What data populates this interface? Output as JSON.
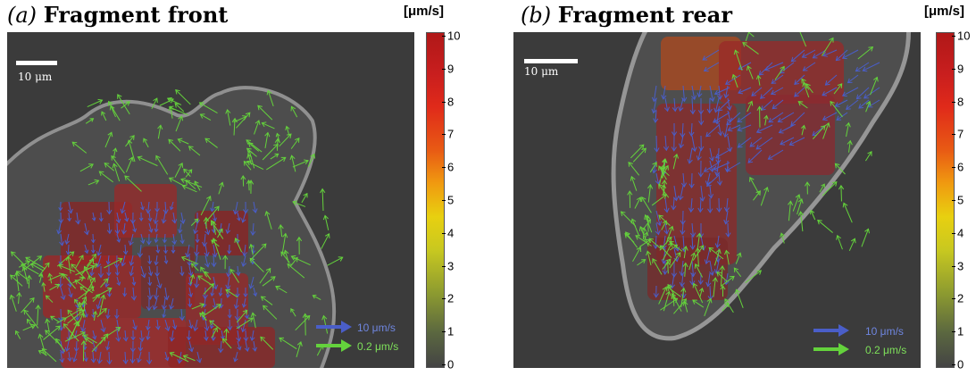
{
  "panels": [
    {
      "letter": "(a)",
      "title": "Fragment front",
      "scale_bar": "10 μm",
      "legend": [
        {
          "label": "10 μm/s",
          "color": "#4a5ec8"
        },
        {
          "label": "0.2 μm/s",
          "color": "#64d23c"
        }
      ],
      "colorbar_unit": "[μm/s]",
      "colorbar_ticks": [
        "10",
        "9",
        "8",
        "7",
        "6",
        "5",
        "4",
        "3",
        "2",
        "1",
        "0"
      ]
    },
    {
      "letter": "(b)",
      "title": "Fragment rear",
      "scale_bar": "10 μm",
      "legend": [
        {
          "label": "10 μm/s",
          "color": "#4a5ec8"
        },
        {
          "label": "0.2 μm/s",
          "color": "#64d23c"
        }
      ],
      "colorbar_unit": "[μm/s]",
      "colorbar_ticks": [
        "10",
        "9",
        "8",
        "7",
        "6",
        "5",
        "4",
        "3",
        "2",
        "1",
        "0"
      ]
    }
  ],
  "colors": {
    "blue_arrow": "#4a5ec8",
    "green_arrow": "#64d23c",
    "background": "#3a3a3a"
  }
}
